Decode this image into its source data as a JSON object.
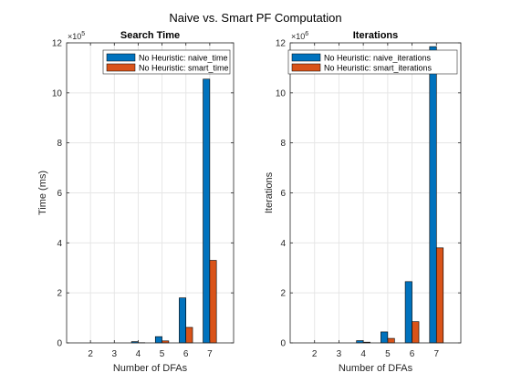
{
  "figure": {
    "title": "Naive vs. Smart PF Computation"
  },
  "chart_data": [
    {
      "type": "bar",
      "title": "Search Time",
      "xlabel": "Number of DFAs",
      "ylabel": "Time (ms)",
      "categories": [
        "2",
        "3",
        "4",
        "5",
        "6",
        "7"
      ],
      "ylim": [
        0,
        1200000
      ],
      "yticks": [
        0,
        200000,
        400000,
        600000,
        800000,
        1000000,
        1200000
      ],
      "ytick_labels": [
        "0",
        "2",
        "4",
        "6",
        "8",
        "10",
        "12"
      ],
      "y_exponent_label": "×10",
      "y_exponent_power": "5",
      "grid": true,
      "legend_position": "top-right",
      "series": [
        {
          "name": "No Heuristic: naive_time",
          "color": "#0072BD",
          "values": [
            0,
            0,
            5000,
            25000,
            180000,
            1055000
          ]
        },
        {
          "name": "No Heuristic: smart_time",
          "color": "#D95319",
          "values": [
            0,
            0,
            1000,
            8000,
            62000,
            330000
          ]
        }
      ]
    },
    {
      "type": "bar",
      "title": "Iterations",
      "xlabel": "Number of DFAs",
      "ylabel": "Iterations",
      "categories": [
        "2",
        "3",
        "4",
        "5",
        "6",
        "7"
      ],
      "ylim": [
        0,
        12000000
      ],
      "yticks": [
        0,
        2000000,
        4000000,
        6000000,
        8000000,
        10000000,
        12000000
      ],
      "ytick_labels": [
        "0",
        "2",
        "4",
        "6",
        "8",
        "10",
        "12"
      ],
      "y_exponent_label": "×10",
      "y_exponent_power": "6",
      "grid": true,
      "legend_position": "top-right",
      "series": [
        {
          "name": "No Heuristic: naive_iterations",
          "color": "#0072BD",
          "values": [
            0,
            0,
            90000,
            440000,
            2450000,
            11850000
          ]
        },
        {
          "name": "No Heuristic: smart_iterations",
          "color": "#D95319",
          "values": [
            0,
            0,
            30000,
            180000,
            850000,
            3800000
          ]
        }
      ]
    }
  ]
}
